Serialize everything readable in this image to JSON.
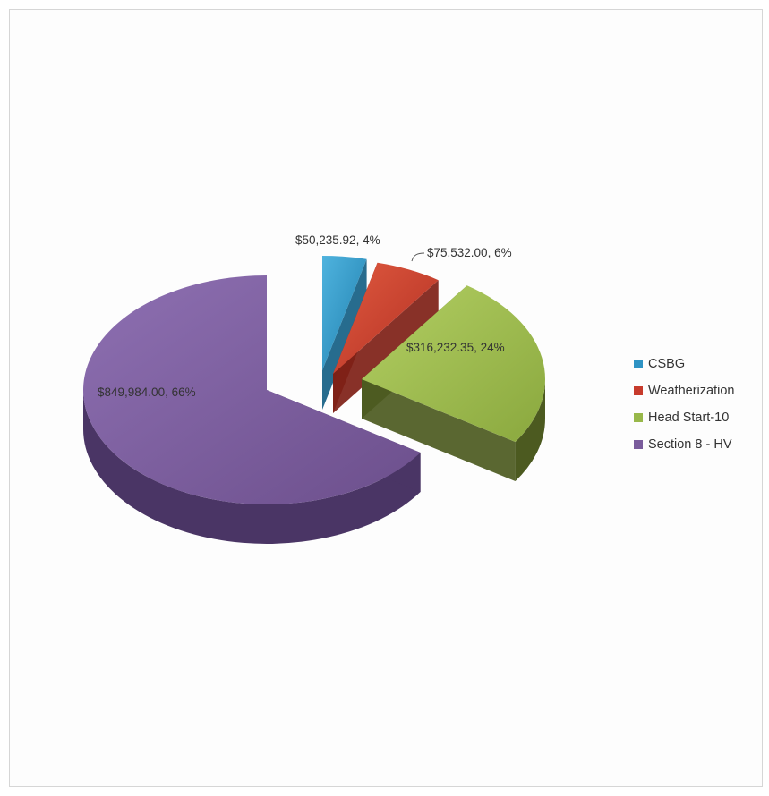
{
  "chart_data": {
    "type": "pie",
    "style": "3d-exploded",
    "legend_position": "right",
    "categories": [
      "CSBG",
      "Weatherization",
      "Head Start-10",
      "Section 8 - HV"
    ],
    "values": [
      50235.92,
      75532.0,
      316232.35,
      849984.0
    ],
    "percents": [
      4,
      6,
      24,
      66
    ],
    "data_labels": [
      "$50,235.92, 4%",
      "$75,532.00, 6%",
      "$316,232.35, 24%",
      "$849,984.00, 66%"
    ],
    "colors": [
      "#2e93c4",
      "#c73b2c",
      "#98b84a",
      "#7a5c9c"
    ]
  }
}
